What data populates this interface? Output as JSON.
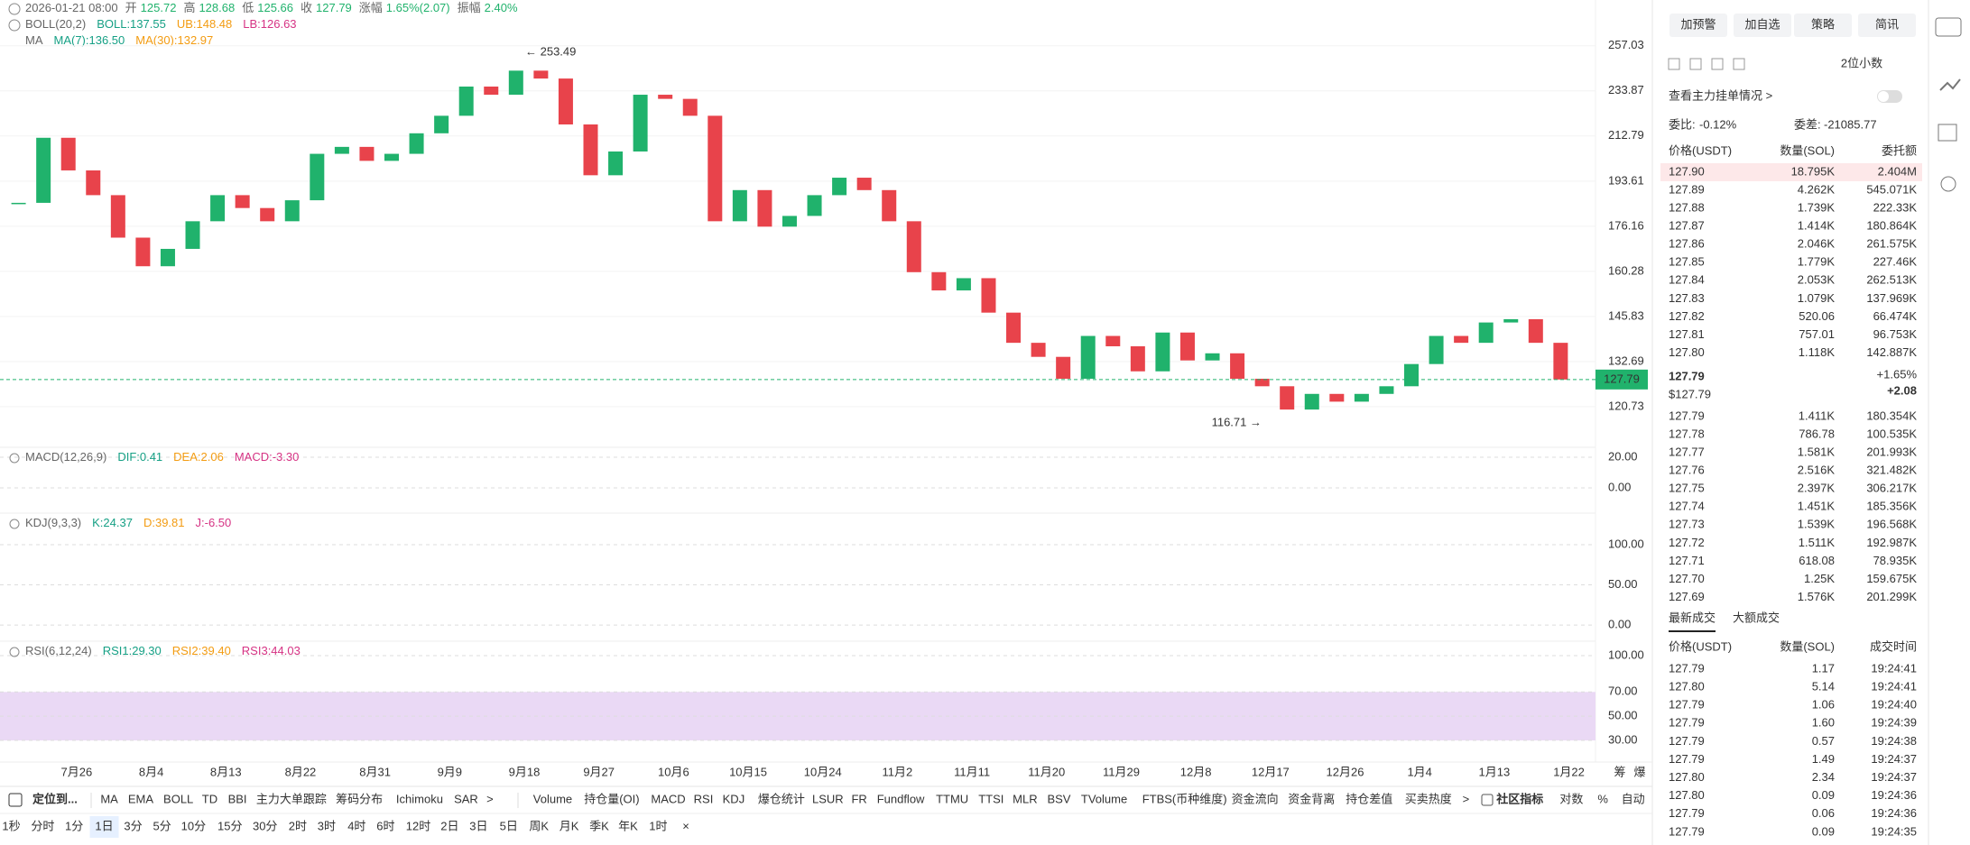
{
  "header": {
    "datetime": "2026-01-21 08:00",
    "open_label": "开",
    "open": "125.72",
    "high_label": "高",
    "high": "128.68",
    "low_label": "低",
    "low": "125.66",
    "close_label": "收",
    "close": "127.79",
    "change_label": "涨幅",
    "change": "1.65%(2.07)",
    "amplitude_label": "振幅",
    "amplitude": "2.40%"
  },
  "chart_data": [
    {
      "type": "candlestick",
      "log": true,
      "grid": true,
      "up_color": "#20b26c",
      "down_color": "#e8434b",
      "legends": [
        {
          "title": "BOLL(20,2)",
          "items": [
            "BOLL:137.55",
            "UB:148.48",
            "LB:126.63"
          ]
        },
        {
          "title": "MA",
          "items": [
            "MA(7):136.50",
            "MA(30):132.97"
          ]
        }
      ],
      "closes": [
        185,
        212,
        198,
        188,
        172,
        162,
        168,
        178,
        188,
        183,
        178,
        186,
        205,
        208,
        202,
        205,
        214,
        222,
        236,
        232,
        244,
        240,
        218,
        196,
        206,
        232,
        230,
        222,
        178,
        190,
        176,
        180,
        188,
        195,
        190,
        178,
        160,
        154,
        158,
        147,
        138,
        134,
        128,
        140,
        137,
        130,
        141,
        133,
        135,
        128,
        126,
        120,
        124,
        122,
        124,
        126,
        132,
        140,
        138,
        144,
        145,
        138,
        127.79
      ],
      "ylim": [
        111.3,
        282.9
      ],
      "yticks": [
        257.03,
        233.87,
        212.79,
        193.61,
        176.16,
        160.28,
        145.83,
        132.69,
        120.73
      ],
      "last_price": 127.79,
      "annotations": [
        {
          "value": 253.49,
          "label": "← 253.49"
        },
        {
          "value": 116.71,
          "label": "116.71 →"
        }
      ],
      "dates": [
        "7月26",
        "8月4",
        "8月13",
        "8月22",
        "8月31",
        "9月9",
        "9月18",
        "9月27",
        "10月6",
        "10月15",
        "10月24",
        "11月2",
        "11月11",
        "11月20",
        "11月29",
        "12月8",
        "12月17",
        "12月26",
        "1月4",
        "1月13",
        "1月22"
      ],
      "axis_corner": [
        "筹",
        "爆"
      ]
    },
    {
      "type": "indicator",
      "title": "MACD(12,26,9)",
      "legend": [
        "DIF:0.41",
        "DEA:2.06",
        "MACD:-3.30"
      ],
      "ylim": [
        -15.9,
        25.3
      ],
      "yticks": [
        {
          "value": 20,
          "label": "20.00"
        },
        {
          "value": 0,
          "label": "0.00"
        }
      ]
    },
    {
      "type": "indicator",
      "title": "KDJ(9,3,3)",
      "legend": [
        "K:24.37",
        "D:39.81",
        "J:-6.50"
      ],
      "ylim": [
        -19,
        137
      ],
      "yticks": [
        {
          "value": 100,
          "label": "100.00"
        },
        {
          "value": 50,
          "label": "50.00"
        },
        {
          "value": 0,
          "label": "0.00"
        }
      ]
    },
    {
      "type": "indicator",
      "title": "RSI(6,12,24)",
      "legend": [
        "RSI1:29.30",
        "RSI2:39.40",
        "RSI3:44.03"
      ],
      "ylim": [
        14.4,
        110.4
      ],
      "yticks": [
        {
          "value": 100,
          "label": "100.00"
        },
        {
          "value": 70,
          "label": "70.00"
        },
        {
          "value": 50,
          "label": "50.00"
        },
        {
          "value": 30,
          "label": "30.00"
        }
      ]
    }
  ],
  "toolbar": {
    "locate": "定位到...",
    "main": [
      {
        "label": "MA",
        "active": true
      },
      {
        "label": "EMA"
      },
      {
        "label": "BOLL",
        "active": true
      },
      {
        "label": "TD"
      },
      {
        "label": "BBI"
      },
      {
        "label": "主力大单跟踪"
      },
      {
        "label": "筹码分布"
      },
      {
        "label": "Ichimoku"
      },
      {
        "label": "SAR"
      },
      {
        "label": ">"
      }
    ],
    "sub": [
      {
        "label": "Volume"
      },
      {
        "label": "持仓量(OI)"
      },
      {
        "label": "MACD",
        "active": true
      },
      {
        "label": "RSI",
        "active": true
      },
      {
        "label": "KDJ",
        "active": true
      },
      {
        "label": "爆仓统计"
      },
      {
        "label": "LSUR"
      },
      {
        "label": "FR"
      },
      {
        "label": "Fundflow"
      },
      {
        "label": "TTMU"
      },
      {
        "label": "TTSI"
      },
      {
        "label": "MLR"
      },
      {
        "label": "BSV"
      },
      {
        "label": "TVolume"
      },
      {
        "label": "FTBS(币种维度)"
      },
      {
        "label": "资金流向"
      },
      {
        "label": "资金背离"
      },
      {
        "label": "持仓差值"
      },
      {
        "label": "买卖热度"
      },
      {
        "label": ">"
      }
    ],
    "community": "社区指标",
    "options": [
      {
        "label": "对数",
        "active": true
      },
      {
        "label": "%"
      },
      {
        "label": "自动",
        "active": true
      }
    ]
  },
  "intervals": {
    "items": [
      {
        "label": "1秒"
      },
      {
        "label": "分时"
      },
      {
        "label": "1分"
      },
      {
        "label": "1日",
        "selected": true
      },
      {
        "label": "3分"
      },
      {
        "label": "5分"
      },
      {
        "label": "10分"
      },
      {
        "label": "15分"
      },
      {
        "label": "30分"
      },
      {
        "label": "2时"
      },
      {
        "label": "3时"
      },
      {
        "label": "4时"
      },
      {
        "label": "6时"
      },
      {
        "label": "12时"
      },
      {
        "label": "2日"
      },
      {
        "label": "3日"
      },
      {
        "label": "5日"
      },
      {
        "label": "周K"
      },
      {
        "label": "月K"
      },
      {
        "label": "季K"
      },
      {
        "label": "年K"
      },
      {
        "label": "1时"
      }
    ],
    "close": "×"
  },
  "panel": {
    "buttons": [
      "加预警",
      "加自选",
      "策略",
      "简讯"
    ],
    "precision": "2位小数",
    "main_orders": "查看主力挂单情况 >",
    "ratio_label": "委比:",
    "ratio": "-0.12%",
    "diff_label": "委差:",
    "diff": "-21085.77",
    "book_header": [
      "价格(USDT)",
      "数量(SOL)",
      "委托额"
    ],
    "asks": [
      [
        "127.90",
        "18.795K",
        "2.404M"
      ],
      [
        "127.89",
        "4.262K",
        "545.071K"
      ],
      [
        "127.88",
        "1.739K",
        "222.33K"
      ],
      [
        "127.87",
        "1.414K",
        "180.864K"
      ],
      [
        "127.86",
        "2.046K",
        "261.575K"
      ],
      [
        "127.85",
        "1.779K",
        "227.46K"
      ],
      [
        "127.84",
        "2.053K",
        "262.513K"
      ],
      [
        "127.83",
        "1.079K",
        "137.969K"
      ],
      [
        "127.82",
        "520.06",
        "66.474K"
      ],
      [
        "127.81",
        "757.01",
        "96.753K"
      ],
      [
        "127.80",
        "1.118K",
        "142.887K"
      ]
    ],
    "mid": {
      "price": "127.79",
      "usd": "$127.79",
      "change_pct": "+1.65%",
      "change": "+2.08"
    },
    "bids": [
      [
        "127.79",
        "1.411K",
        "180.354K"
      ],
      [
        "127.78",
        "786.78",
        "100.535K"
      ],
      [
        "127.77",
        "1.581K",
        "201.993K"
      ],
      [
        "127.76",
        "2.516K",
        "321.482K"
      ],
      [
        "127.75",
        "2.397K",
        "306.217K"
      ],
      [
        "127.74",
        "1.451K",
        "185.356K"
      ],
      [
        "127.73",
        "1.539K",
        "196.568K"
      ],
      [
        "127.72",
        "1.511K",
        "192.987K"
      ],
      [
        "127.71",
        "618.08",
        "78.935K"
      ],
      [
        "127.70",
        "1.25K",
        "159.675K"
      ],
      [
        "127.69",
        "1.576K",
        "201.299K"
      ]
    ],
    "tabs": [
      "最新成交",
      "大额成交"
    ],
    "trades_header": [
      "价格(USDT)",
      "数量(SOL)",
      "成交时间"
    ],
    "trades": [
      {
        "price": "127.79",
        "qty": "1.17",
        "time": "19:24:41",
        "color": "#e8434b"
      },
      {
        "price": "127.80",
        "qty": "5.14",
        "time": "19:24:41",
        "color": "#20b26c"
      },
      {
        "price": "127.79",
        "qty": "1.06",
        "time": "19:24:40",
        "color": "#e8434b"
      },
      {
        "price": "127.79",
        "qty": "1.60",
        "time": "19:24:39",
        "color": "#e8434b"
      },
      {
        "price": "127.79",
        "qty": "0.57",
        "time": "19:24:38",
        "color": "#e8434b"
      },
      {
        "price": "127.79",
        "qty": "1.49",
        "time": "19:24:37",
        "color": "#e8434b"
      },
      {
        "price": "127.80",
        "qty": "2.34",
        "time": "19:24:37",
        "color": "#20b26c"
      },
      {
        "price": "127.80",
        "qty": "0.09",
        "time": "19:24:36",
        "color": "#20b26c"
      },
      {
        "price": "127.79",
        "qty": "0.06",
        "time": "19:24:36",
        "color": "#e8434b"
      },
      {
        "price": "127.79",
        "qty": "0.09",
        "time": "19:24:35",
        "color": "#e8434b"
      }
    ]
  }
}
